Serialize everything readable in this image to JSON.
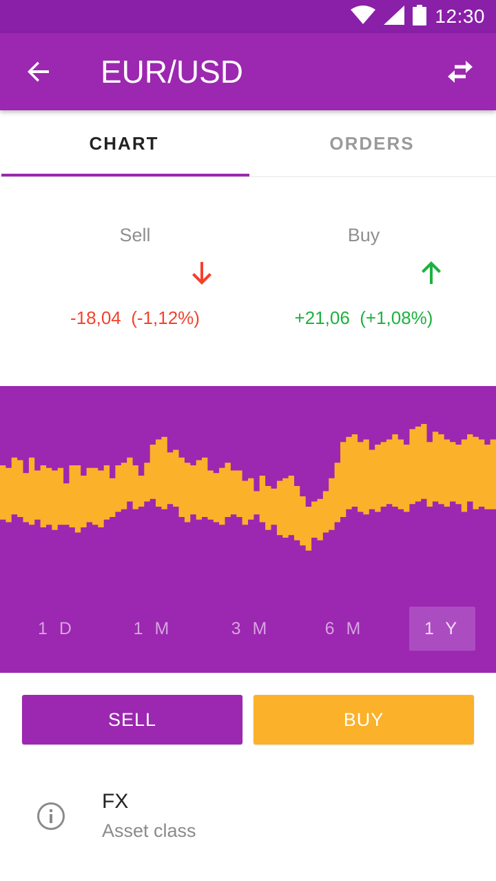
{
  "status_bar": {
    "time": "12:30",
    "icons": [
      "wifi-icon",
      "signal-icon",
      "battery-icon"
    ]
  },
  "app_bar": {
    "title": "EUR/USD",
    "back_icon": "arrow-back-icon",
    "swap_icon": "swap-horizontal-icon"
  },
  "tabs": [
    {
      "label": "CHART",
      "active": true
    },
    {
      "label": "ORDERS",
      "active": false
    }
  ],
  "quotes": {
    "sell": {
      "label": "Sell",
      "change": "-18,04",
      "percent": "(-1,12%)",
      "direction": "down",
      "color": "#f4412c"
    },
    "buy": {
      "label": "Buy",
      "change": "+21,06",
      "percent": "(+1,08%)",
      "direction": "up",
      "color": "#1db13e"
    }
  },
  "periods": [
    {
      "label": "1 D",
      "active": false
    },
    {
      "label": "1 M",
      "active": false
    },
    {
      "label": "3 M",
      "active": false
    },
    {
      "label": "6 M",
      "active": false
    },
    {
      "label": "1 Y",
      "active": true
    }
  ],
  "actions": {
    "sell_label": "SELL",
    "buy_label": "BUY"
  },
  "info": {
    "value": "FX",
    "label": "Asset class",
    "icon": "info-icon"
  },
  "colors": {
    "primary": "#9c27b0",
    "status_bar": "#8a1fa8",
    "accent": "#fbb12a",
    "sell": "#f4412c",
    "buy": "#1db13e"
  },
  "chart_data": {
    "type": "area",
    "series": [
      {
        "values": [
          52,
          51,
          55,
          54,
          49,
          55,
          50,
          52,
          51,
          50,
          51,
          45,
          52,
          52,
          48,
          51,
          51,
          50,
          52,
          47,
          52,
          53,
          55,
          52,
          48,
          53,
          60,
          62,
          63,
          57,
          58,
          55,
          53,
          52,
          54,
          55,
          50,
          49,
          51,
          53,
          50,
          50,
          46,
          47,
          42,
          48,
          44,
          43,
          46,
          47,
          48,
          44,
          40,
          36,
          38,
          39,
          42,
          47,
          53,
          61,
          63,
          64,
          61,
          62,
          58,
          60,
          61,
          62,
          64,
          62,
          60,
          66,
          67,
          68,
          61,
          65,
          64,
          62,
          61,
          60,
          62,
          64,
          63,
          62,
          60,
          62
        ]
      },
      {
        "values": [
          31,
          30,
          33,
          32,
          30,
          29,
          31,
          28,
          29,
          27,
          29,
          29,
          28,
          26,
          28,
          30,
          29,
          28,
          31,
          32,
          34,
          35,
          38,
          35,
          36,
          38,
          39,
          36,
          35,
          37,
          36,
          32,
          30,
          33,
          31,
          32,
          31,
          30,
          29,
          32,
          33,
          32,
          29,
          31,
          33,
          30,
          27,
          29,
          25,
          24,
          25,
          23,
          21,
          19,
          24,
          23,
          26,
          27,
          30,
          32,
          35,
          36,
          34,
          33,
          35,
          34,
          36,
          37,
          36,
          35,
          34,
          37,
          38,
          39,
          36,
          38,
          37,
          36,
          38,
          37,
          34,
          38,
          35,
          36,
          35,
          35
        ]
      }
    ]
  }
}
